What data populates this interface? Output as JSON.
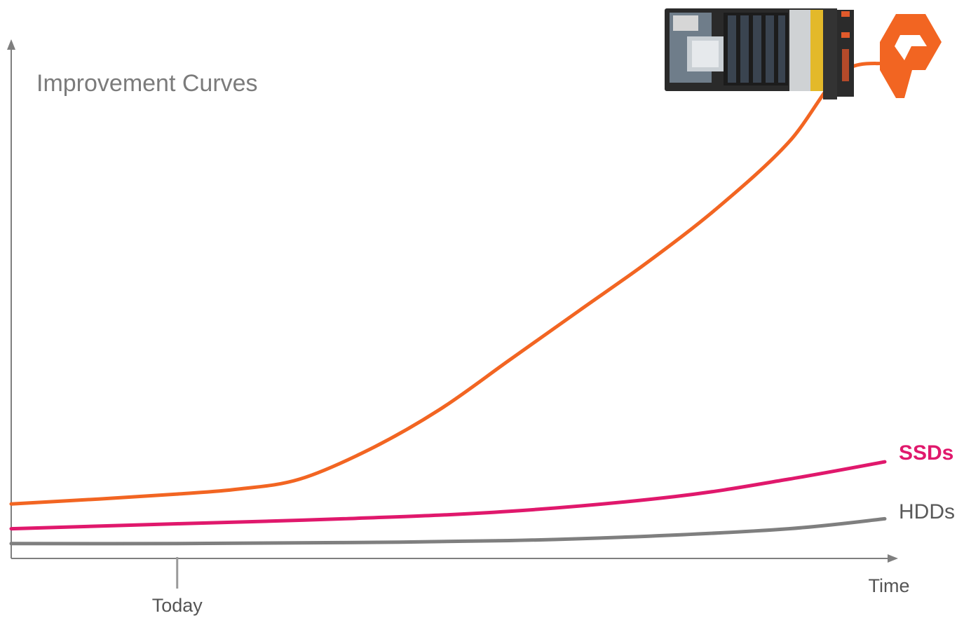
{
  "chart_data": {
    "type": "line",
    "title": "Improvement Curves",
    "xlabel": "Time",
    "ylabel": "",
    "x_marker": {
      "label": "Today",
      "x": 0.19
    },
    "xlim": [
      0,
      1
    ],
    "ylim": [
      0,
      1
    ],
    "grid": false,
    "legend": "none",
    "series": [
      {
        "name": "",
        "color": "#f26522",
        "x": [
          0.0,
          0.1,
          0.19,
          0.26,
          0.33,
          0.41,
          0.49,
          0.57,
          0.65,
          0.73,
          0.81,
          0.89,
          0.95,
          1.0
        ],
        "y": [
          0.11,
          0.12,
          0.13,
          0.14,
          0.16,
          0.22,
          0.3,
          0.4,
          0.5,
          0.6,
          0.71,
          0.84,
          0.98,
          1.0
        ]
      },
      {
        "name": "SSDs",
        "color": "#e0186c",
        "x": [
          0.0,
          0.19,
          0.38,
          0.57,
          0.76,
          0.89,
          1.0
        ],
        "y": [
          0.06,
          0.07,
          0.08,
          0.095,
          0.125,
          0.16,
          0.195
        ]
      },
      {
        "name": "HDDs",
        "color": "#7f7f7f",
        "x": [
          0.0,
          0.19,
          0.38,
          0.57,
          0.73,
          0.89,
          1.0
        ],
        "y": [
          0.03,
          0.03,
          0.032,
          0.036,
          0.045,
          0.06,
          0.08
        ]
      }
    ]
  },
  "images": {
    "hardware_module": "flash-blade-module-image",
    "brand_logo": "pure-storage-logo-icon"
  },
  "colors": {
    "axis": "#7f7f7f",
    "logo": "#f26522",
    "ssd_label": "#e0186c",
    "hdd_label": "#595959"
  }
}
